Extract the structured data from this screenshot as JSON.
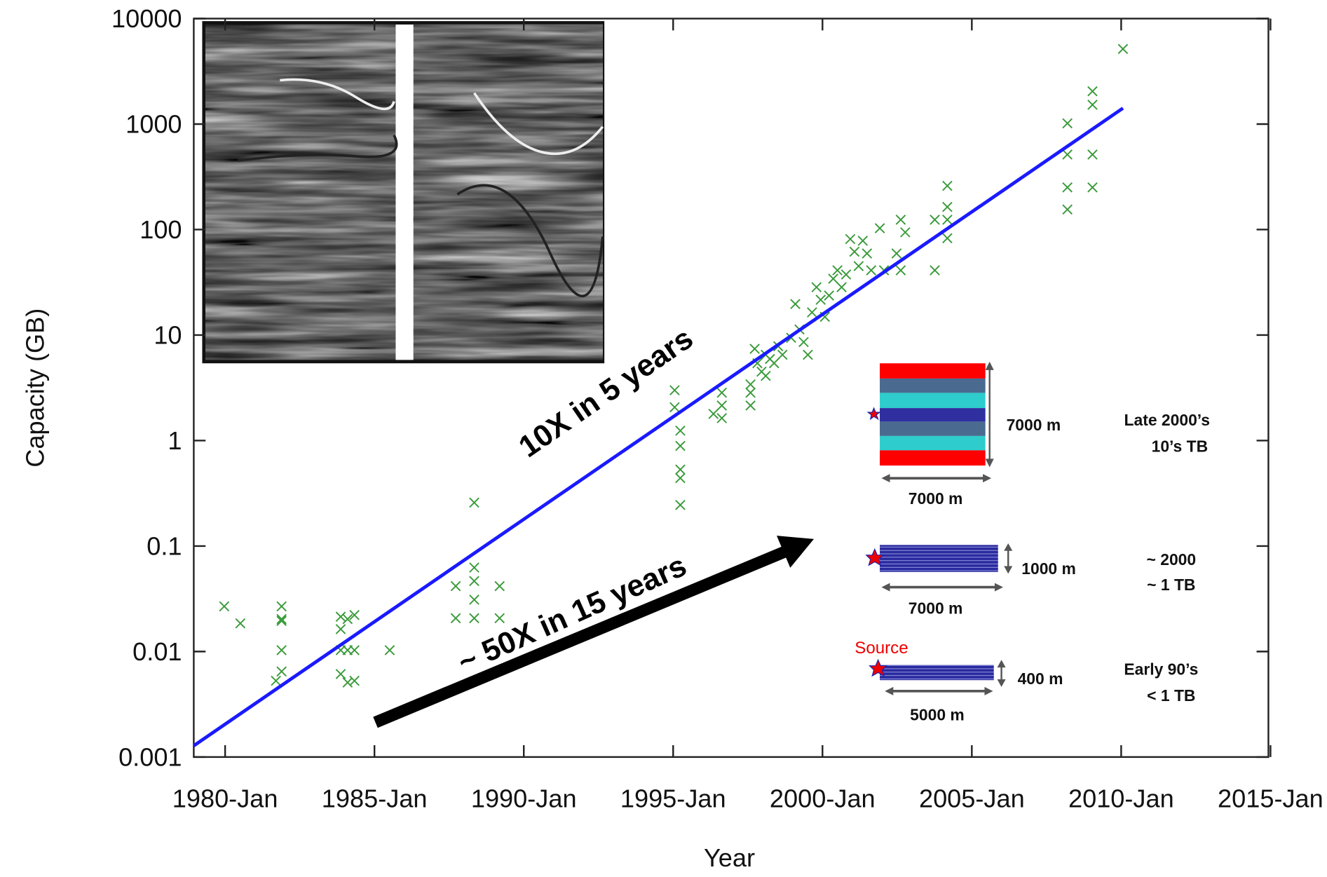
{
  "chart_data": {
    "type": "scatter",
    "x_label": "Year",
    "y_label": "Capacity (GB)",
    "log_y": true,
    "xlim": [
      1978.95,
      2014.93
    ],
    "ylim": [
      0.001,
      10000
    ],
    "xticks": [
      {
        "value": 1980,
        "label": "1980-Jan"
      },
      {
        "value": 1985,
        "label": "1985-Jan"
      },
      {
        "value": 1990,
        "label": "1990-Jan"
      },
      {
        "value": 1995,
        "label": "1995-Jan"
      },
      {
        "value": 2000,
        "label": "2000-Jan"
      },
      {
        "value": 2005,
        "label": "2005-Jan"
      },
      {
        "value": 2010,
        "label": "2010-Jan"
      },
      {
        "value": 2015,
        "label": "2015-Jan"
      }
    ],
    "yticks": [
      0.001,
      0.01,
      0.1,
      1,
      10,
      100,
      1000,
      10000
    ],
    "color": "#3a9a3a",
    "x": [
      1979.97,
      1980.51,
      1981.89,
      1981.89,
      1981.89,
      1981.89,
      1981.89,
      1981.7,
      1983.87,
      1983.87,
      1984.1,
      1984.33,
      1983.87,
      1984.1,
      1984.33,
      1983.87,
      1984.1,
      1984.33,
      1985.51,
      1987.72,
      1987.72,
      1988.34,
      1988.34,
      1988.34,
      1988.34,
      1989.19,
      1989.19,
      1988.34,
      1995.05,
      1995.05,
      1995.24,
      1995.24,
      1995.24,
      1995.24,
      1995.24,
      1996.35,
      1996.63,
      1996.63,
      1996.63,
      1997.59,
      1997.59,
      1997.59,
      1997.73,
      1997.82,
      1997.96,
      1998.1,
      1998.24,
      1998.38,
      1998.52,
      1998.66,
      1998.1,
      1998.95,
      1999.09,
      1999.23,
      1999.37,
      1999.51,
      1999.65,
      1999.8,
      1999.94,
      2000.08,
      2000.22,
      2000.36,
      2000.5,
      2000.64,
      2000.79,
      2000.93,
      2001.07,
      2001.21,
      2001.35,
      2001.49,
      2001.63,
      2001.92,
      2002.06,
      2002.48,
      2002.62,
      2002.62,
      2002.77,
      2003.76,
      2003.76,
      2004.18,
      2004.18,
      2004.18,
      2004.18,
      2008.2,
      2008.2,
      2008.2,
      2008.2,
      2009.04,
      2009.04,
      2009.04,
      2009.04,
      2010.06
    ],
    "values": [
      0.0268,
      0.0185,
      0.0268,
      0.0203,
      0.0195,
      0.0103,
      0.00647,
      0.00528,
      0.0214,
      0.0163,
      0.0203,
      0.0222,
      0.0103,
      0.0103,
      0.0103,
      0.00612,
      0.00509,
      0.00528,
      0.0103,
      0.0417,
      0.0207,
      0.0625,
      0.0466,
      0.031,
      0.0207,
      0.0417,
      0.0207,
      0.258,
      3.0,
      2.07,
      1.24,
      0.89,
      0.531,
      0.441,
      0.245,
      1.79,
      2.84,
      2.15,
      1.63,
      2.84,
      2.15,
      3.41,
      7.41,
      5.41,
      4.5,
      6.5,
      5.93,
      5.41,
      7.83,
      6.5,
      4.1,
      9.42,
      19.7,
      11.3,
      8.59,
      6.5,
      16.4,
      28.4,
      21.6,
      14.9,
      23.7,
      34.2,
      41.1,
      28.4,
      37.5,
      81.3,
      61.7,
      45.1,
      78.3,
      59.4,
      41.1,
      103,
      41.1,
      59.4,
      124,
      41.1,
      94.2,
      41.1,
      124,
      260,
      164,
      124,
      82.8,
      1016,
      514,
      251,
      155,
      2046,
      1524,
      514,
      251,
      5152
    ],
    "fit": {
      "x": [
        1978.95,
        2010.06
      ],
      "values": [
        0.00128,
        1415
      ],
      "color": "#1a1aff"
    },
    "annotations": [
      "10X in 5 years",
      "~ 50X in 15 years"
    ],
    "diagram": {
      "late": {
        "height": "7000 m",
        "width": "7000 m",
        "era": "Late 2000’s",
        "size": "10’s TB"
      },
      "mid": {
        "height": "1000 m",
        "width": "7000 m",
        "era": "~ 2000",
        "size": "~ 1 TB"
      },
      "early": {
        "source": "Source",
        "height": "400 m",
        "width": "5000 m",
        "era": "Early 90’s",
        "size": "< 1 TB"
      }
    }
  }
}
